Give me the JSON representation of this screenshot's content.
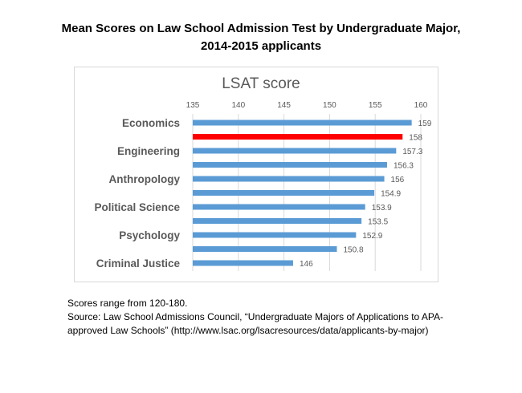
{
  "heading": {
    "line1": "Mean Scores on Law School Admission Test by Undergraduate Major,",
    "line2": "2014-2015 applicants"
  },
  "chart_data": {
    "type": "bar",
    "orientation": "horizontal",
    "title": "LSAT score",
    "categories": [
      "Economics",
      "",
      "Engineering",
      "",
      "Anthropology",
      "",
      "Political Science",
      "",
      "Psychology",
      "",
      "Criminal Justice"
    ],
    "values": [
      159,
      158,
      157.3,
      156.3,
      156,
      154.9,
      153.9,
      153.5,
      152.9,
      150.8,
      146
    ],
    "value_labels": [
      "159",
      "158",
      "157.3",
      "156.3",
      "156",
      "154.9",
      "153.9",
      "153.5",
      "152.9",
      "150.8",
      "146"
    ],
    "highlight_index": 1,
    "xlim": [
      135,
      160
    ],
    "xticks": [
      "135",
      "140",
      "145",
      "150",
      "155",
      "160"
    ],
    "xtick_values": [
      135,
      140,
      145,
      150,
      155,
      160
    ],
    "grid": true,
    "xaxis_position": "top",
    "colors": {
      "bar": "#5b9bd5",
      "highlight": "#ff0000",
      "grid": "#d9d9d9",
      "label": "#595959"
    }
  },
  "notes": {
    "line1": "Scores range from 120-180.",
    "line2": "Source:  Law School Admissions Council, “Undergraduate Majors of Applications to APA-",
    "line3": "approved Law Schools” (http://www.lsac.org/lsacresources/data/applicants-by-major)"
  }
}
